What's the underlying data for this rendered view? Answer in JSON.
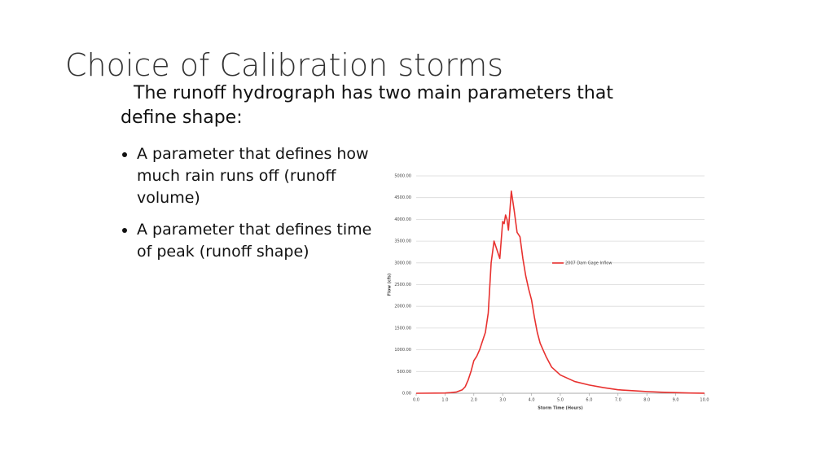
{
  "slide": {
    "title": "Choice of Calibration storms",
    "intro": "The runoff hydrograph has two main parameters that define shape:",
    "bullets": [
      "A parameter that defines how much rain runs off (runoff volume)",
      "A parameter that defines time of peak (runoff shape)"
    ]
  },
  "chart_data": {
    "type": "line",
    "x_label": "Storm Time (Hours)",
    "y_label": "Flow (cfs)",
    "xlim": [
      0,
      10
    ],
    "ylim": [
      0,
      5000
    ],
    "xticks": [
      {
        "value": 0,
        "label": "0.0"
      },
      {
        "value": 1,
        "label": "1.0"
      },
      {
        "value": 2,
        "label": "2.0"
      },
      {
        "value": 3,
        "label": "3.0"
      },
      {
        "value": 4,
        "label": "4.0"
      },
      {
        "value": 5,
        "label": "5.0"
      },
      {
        "value": 6,
        "label": "6.0"
      },
      {
        "value": 7,
        "label": "7.0"
      },
      {
        "value": 8,
        "label": "8.0"
      },
      {
        "value": 9,
        "label": "9.0"
      },
      {
        "value": 10,
        "label": "10.0"
      }
    ],
    "yticks": [
      {
        "value": 0,
        "label": "0.00"
      },
      {
        "value": 500,
        "label": "500.00"
      },
      {
        "value": 1000,
        "label": "1000.00"
      },
      {
        "value": 1500,
        "label": "1500.00"
      },
      {
        "value": 2000,
        "label": "2000.00"
      },
      {
        "value": 2500,
        "label": "2500.00"
      },
      {
        "value": 3000,
        "label": "3000.00"
      },
      {
        "value": 3500,
        "label": "3500.00"
      },
      {
        "value": 4000,
        "label": "4000.00"
      },
      {
        "value": 4500,
        "label": "4500.00"
      },
      {
        "value": 5000,
        "label": "5000.00"
      }
    ],
    "grid": true,
    "series": [
      {
        "name": "2007 Dam Gage Inflow",
        "color": "#e8312f",
        "x": [
          0,
          1.0,
          1.2,
          1.4,
          1.6,
          1.7,
          1.8,
          1.9,
          2.0,
          2.1,
          2.2,
          2.3,
          2.4,
          2.5,
          2.6,
          2.7,
          2.8,
          2.9,
          3.0,
          3.05,
          3.1,
          3.15,
          3.2,
          3.3,
          3.4,
          3.5,
          3.6,
          3.7,
          3.8,
          3.9,
          4.0,
          4.1,
          4.2,
          4.3,
          4.5,
          4.7,
          5.0,
          5.5,
          6.0,
          6.5,
          7.0,
          7.5,
          8.0,
          8.5,
          9.0,
          9.5,
          10.0
        ],
        "values": [
          0,
          5,
          15,
          30,
          80,
          150,
          300,
          500,
          750,
          850,
          1000,
          1200,
          1400,
          1850,
          3000,
          3500,
          3300,
          3100,
          3950,
          3900,
          4100,
          4000,
          3750,
          4650,
          4200,
          3700,
          3600,
          3100,
          2700,
          2400,
          2150,
          1750,
          1400,
          1150,
          850,
          600,
          420,
          270,
          190,
          130,
          80,
          60,
          40,
          25,
          15,
          5,
          2
        ]
      }
    ]
  }
}
